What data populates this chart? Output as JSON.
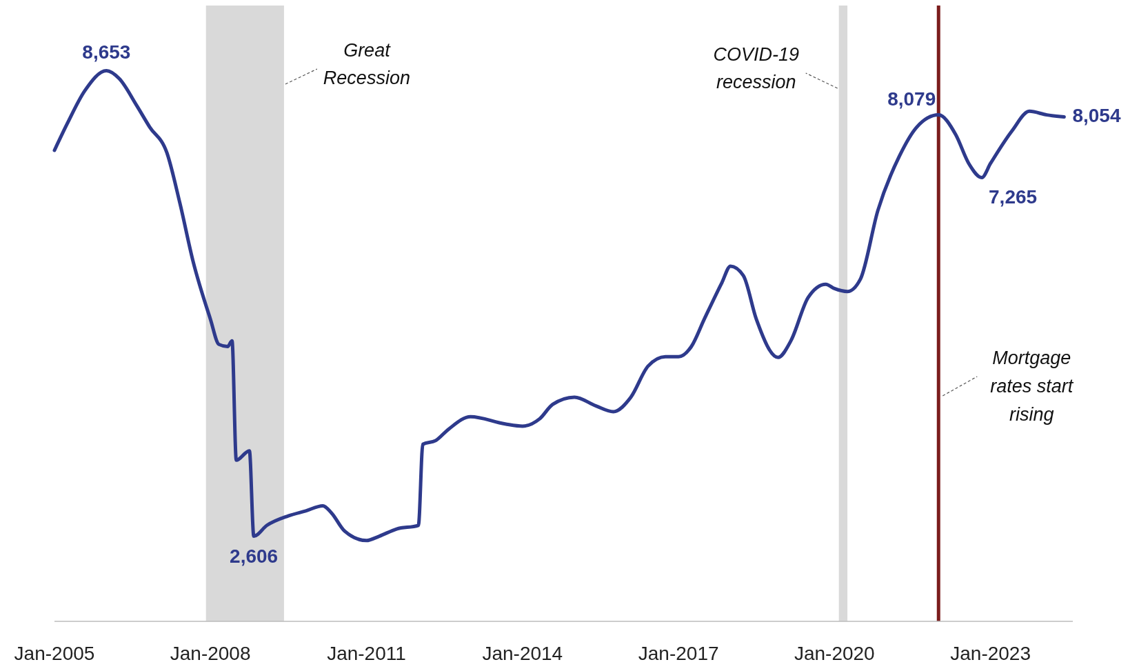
{
  "chart_data": {
    "type": "line",
    "x": [
      "2005-01",
      "2005-04",
      "2005-08",
      "2006-01",
      "2006-04",
      "2006-08",
      "2006-11",
      "2007-03",
      "2007-06",
      "2007-09",
      "2008-01",
      "2008-03",
      "2008-05",
      "2008-06",
      "2008-07",
      "2008-10",
      "2008-11",
      "2009-02",
      "2009-07",
      "2009-11",
      "2010-03",
      "2010-05",
      "2010-08",
      "2011-01",
      "2011-04",
      "2011-08",
      "2012-01",
      "2012-02",
      "2012-05",
      "2012-08",
      "2013-01",
      "2013-09",
      "2014-01",
      "2014-05",
      "2014-08",
      "2015-01",
      "2015-06",
      "2015-10",
      "2016-02",
      "2016-06",
      "2016-10",
      "2017-01",
      "2017-04",
      "2017-07",
      "2017-11",
      "2018-01",
      "2018-04",
      "2018-07",
      "2018-12",
      "2019-03",
      "2019-07",
      "2019-11",
      "2020-01",
      "2020-04",
      "2020-07",
      "2020-11",
      "2021-04",
      "2021-08",
      "2022-01",
      "2022-05",
      "2022-08",
      "2022-11",
      "2023-01",
      "2023-06",
      "2023-10",
      "2024-02",
      "2024-06"
    ],
    "series": [
      {
        "color": "#2e3a8c",
        "values": [
          7619,
          7966,
          8390,
          8653,
          8550,
          8202,
          7920,
          7590,
          6932,
          6180,
          5427,
          5098,
          5070,
          5145,
          3594,
          3716,
          2606,
          2747,
          2870,
          2935,
          3001,
          2907,
          2672,
          2550,
          2606,
          2700,
          2747,
          3800,
          3848,
          3998,
          4158,
          4064,
          4036,
          4130,
          4318,
          4412,
          4299,
          4224,
          4412,
          4816,
          4938,
          4938,
          5070,
          5427,
          5898,
          6114,
          5992,
          5427,
          4929,
          5145,
          5710,
          5879,
          5823,
          5785,
          5945,
          6838,
          7543,
          7920,
          8079,
          7825,
          7449,
          7265,
          7449,
          7872,
          8126,
          8079,
          8054
        ],
        "value_labels": [
          null,
          null,
          null,
          "8,653",
          null,
          null,
          null,
          null,
          null,
          null,
          null,
          null,
          null,
          null,
          null,
          null,
          "2,606",
          null,
          null,
          null,
          null,
          null,
          null,
          null,
          null,
          null,
          null,
          null,
          null,
          null,
          null,
          null,
          null,
          null,
          null,
          null,
          null,
          null,
          null,
          null,
          null,
          null,
          null,
          null,
          null,
          null,
          null,
          null,
          null,
          null,
          null,
          null,
          null,
          null,
          null,
          null,
          null,
          null,
          "8,079",
          null,
          null,
          "7,265",
          null,
          null,
          null,
          null,
          "8,054"
        ]
      }
    ],
    "xlim": [
      "2005-01",
      "2024-08"
    ],
    "xticks": [
      {
        "value": "2005-01",
        "label": "Jan-2005"
      },
      {
        "value": "2008-01",
        "label": "Jan-2008"
      },
      {
        "value": "2011-01",
        "label": "Jan-2011"
      },
      {
        "value": "2014-01",
        "label": "Jan-2014"
      },
      {
        "value": "2017-01",
        "label": "Jan-2017"
      },
      {
        "value": "2020-01",
        "label": "Jan-2020"
      },
      {
        "value": "2023-01",
        "label": "Jan-2023"
      }
    ],
    "ylim": [
      1500,
      9500
    ],
    "tick_labels": "x",
    "bands": [
      {
        "axis": "x",
        "from": "2007-12",
        "to": "2009-06",
        "label": "Great Recession",
        "color": "#d9d9d9"
      },
      {
        "axis": "x",
        "from": "2020-02",
        "to": "2020-04",
        "label": "COVID-19 recession",
        "color": "#d9d9d9"
      }
    ],
    "ref_lines": [
      {
        "axis": "x",
        "value": "2022-01",
        "label": "Mortgage rates start rising",
        "color": "#7b1c1c"
      }
    ]
  }
}
